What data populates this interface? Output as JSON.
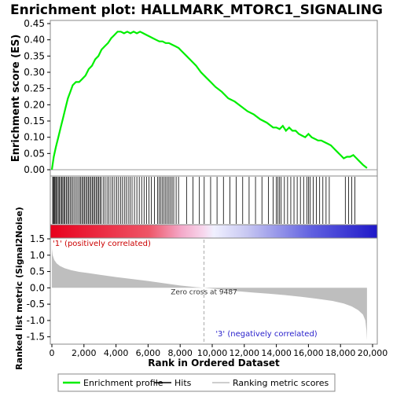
{
  "chart_data": {
    "type": "line",
    "title": "Enrichment plot: HALLMARK_MTORC1_SIGNALING",
    "xlabel": "Rank in Ordered Dataset",
    "xlim": [
      0,
      20000
    ],
    "x_ticks": [
      "0",
      "2,000",
      "4,000",
      "6,000",
      "8,000",
      "10,000",
      "12,000",
      "14,000",
      "16,000",
      "18,000",
      "20,000"
    ],
    "es_panel": {
      "ylabel": "Enrichment score (ES)",
      "ylim": [
        0,
        0.45
      ],
      "y_ticks": [
        "0.00",
        "0.05",
        "0.10",
        "0.15",
        "0.20",
        "0.25",
        "0.30",
        "0.35",
        "0.40",
        "0.45"
      ],
      "series": {
        "name": "Enrichment profile",
        "color": "#00ee00",
        "x": [
          0,
          120,
          250,
          400,
          550,
          700,
          850,
          1000,
          1150,
          1300,
          1500,
          1700,
          1900,
          2100,
          2300,
          2500,
          2700,
          2900,
          3100,
          3300,
          3500,
          3700,
          3900,
          4100,
          4300,
          4500,
          4700,
          4900,
          5100,
          5300,
          5500,
          5700,
          5900,
          6100,
          6300,
          6500,
          6700,
          6900,
          7100,
          7300,
          7500,
          7700,
          7900,
          8100,
          8400,
          8700,
          9000,
          9300,
          9600,
          9900,
          10200,
          10600,
          11000,
          11400,
          11800,
          12200,
          12600,
          13000,
          13400,
          13800,
          14000,
          14200,
          14400,
          14600,
          14800,
          15000,
          15200,
          15400,
          15600,
          15800,
          16000,
          16200,
          16400,
          16600,
          16800,
          17000,
          17200,
          17400,
          17600,
          17800,
          18000,
          18200,
          18400,
          18600,
          18800,
          19000,
          19200,
          19400,
          19650
        ],
        "y": [
          0.0,
          0.04,
          0.07,
          0.1,
          0.13,
          0.16,
          0.19,
          0.22,
          0.24,
          0.26,
          0.27,
          0.27,
          0.28,
          0.29,
          0.31,
          0.32,
          0.34,
          0.35,
          0.37,
          0.38,
          0.39,
          0.405,
          0.415,
          0.425,
          0.425,
          0.42,
          0.425,
          0.42,
          0.425,
          0.42,
          0.425,
          0.42,
          0.415,
          0.41,
          0.405,
          0.4,
          0.395,
          0.395,
          0.39,
          0.39,
          0.385,
          0.38,
          0.375,
          0.365,
          0.35,
          0.335,
          0.32,
          0.3,
          0.285,
          0.27,
          0.255,
          0.24,
          0.22,
          0.21,
          0.195,
          0.18,
          0.17,
          0.155,
          0.145,
          0.13,
          0.13,
          0.125,
          0.135,
          0.12,
          0.13,
          0.12,
          0.12,
          0.11,
          0.105,
          0.1,
          0.11,
          0.1,
          0.095,
          0.09,
          0.09,
          0.085,
          0.08,
          0.075,
          0.065,
          0.055,
          0.045,
          0.035,
          0.04,
          0.04,
          0.045,
          0.035,
          0.025,
          0.015,
          0.005
        ]
      }
    },
    "hits_panel": {
      "name": "Hits",
      "hit_ranks": [
        50,
        100,
        150,
        200,
        260,
        330,
        400,
        470,
        540,
        610,
        680,
        750,
        820,
        900,
        980,
        1060,
        1140,
        1230,
        1320,
        1420,
        1520,
        1620,
        1720,
        1800,
        1880,
        1960,
        2040,
        2120,
        2200,
        2280,
        2360,
        2440,
        2520,
        2600,
        2680,
        2760,
        2840,
        2920,
        3000,
        3080,
        3200,
        3320,
        3440,
        3560,
        3680,
        3800,
        3920,
        4040,
        4160,
        4280,
        4400,
        4520,
        4640,
        4760,
        4880,
        5000,
        5150,
        5300,
        5450,
        5600,
        5750,
        5900,
        6050,
        6200,
        6400,
        6600,
        6700,
        6800,
        6900,
        7000,
        7100,
        7200,
        7300,
        7400,
        7500,
        7600,
        7750,
        7900,
        8400,
        8800,
        9200,
        9500,
        9900,
        10300,
        10700,
        11100,
        11500,
        11900,
        12300,
        12700,
        13100,
        13500,
        13800,
        14000,
        14100,
        14200,
        14300,
        14500,
        14700,
        14900,
        15100,
        15300,
        15500,
        15700,
        15900,
        16000,
        16100,
        16300,
        16500,
        16700,
        16900,
        17100,
        17300,
        18300,
        18500,
        18700,
        18900
      ]
    },
    "ranked_panel": {
      "name": "Ranking metric scores",
      "ylabel": "Ranked list metric (Signal2Noise)",
      "ylim": [
        -1.7,
        1.5
      ],
      "y_ticks": [
        "1.5",
        "1.0",
        "0.5",
        "0.0",
        "-0.5",
        "-1.0",
        "-1.5"
      ],
      "x": [
        0,
        50,
        150,
        300,
        500,
        800,
        1200,
        1700,
        2300,
        3000,
        4000,
        5000,
        6000,
        7000,
        8000,
        9000,
        9487,
        10500,
        11500,
        12500,
        13500,
        14500,
        15500,
        16500,
        17500,
        18200,
        18700,
        19100,
        19400,
        19550,
        19620,
        19650
      ],
      "y": [
        1.2,
        1.0,
        0.85,
        0.75,
        0.67,
        0.6,
        0.54,
        0.49,
        0.45,
        0.4,
        0.33,
        0.27,
        0.21,
        0.14,
        0.07,
        0.02,
        0.0,
        -0.05,
        -0.1,
        -0.14,
        -0.18,
        -0.22,
        -0.27,
        -0.33,
        -0.4,
        -0.48,
        -0.57,
        -0.68,
        -0.82,
        -1.0,
        -1.3,
        -1.6
      ],
      "color": "#bebebe",
      "zero_cross_label": "Zero cross at 9487",
      "zero_cross": 9487,
      "positive_label": "'1' (positively correlated)",
      "negative_label": "'3' (negatively correlated)",
      "positive_color": "#e8001c",
      "negative_color": "#1f18c8"
    },
    "legend": {
      "placement": "bottom",
      "entries": [
        {
          "label": "Enrichment profile",
          "color": "#00ee00"
        },
        {
          "label": "Hits",
          "color": "#000000"
        },
        {
          "label": "Ranking metric scores",
          "color": "#bebebe"
        }
      ]
    }
  }
}
